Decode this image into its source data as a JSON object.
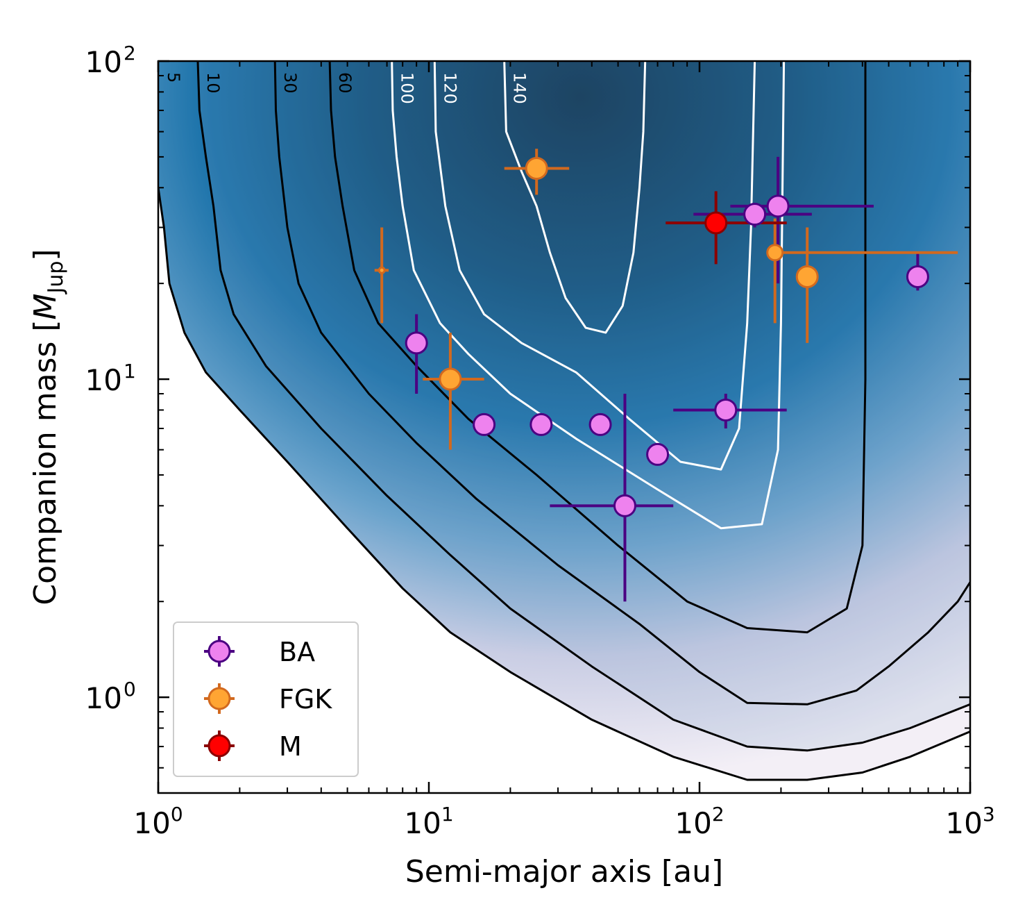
{
  "chart_data": {
    "type": "scatter",
    "title": "",
    "xlabel": "Semi-major axis [au]",
    "ylabel": "Companion mass [M_Jup]",
    "ylabel_main": "Companion mass [",
    "ylabel_italic": "M",
    "ylabel_sub": "Jup",
    "ylabel_end": "]",
    "x_scale": "log",
    "y_scale": "log",
    "xlim": [
      1,
      1000
    ],
    "ylim": [
      0.5,
      100
    ],
    "x_ticks": [
      {
        "value": 1,
        "base": "10",
        "exp": "0"
      },
      {
        "value": 10,
        "base": "10",
        "exp": "1"
      },
      {
        "value": 100,
        "base": "10",
        "exp": "2"
      },
      {
        "value": 1000,
        "base": "10",
        "exp": "3"
      }
    ],
    "y_ticks": [
      {
        "value": 1,
        "base": "10",
        "exp": "0"
      },
      {
        "value": 10,
        "base": "10",
        "exp": "1"
      },
      {
        "value": 100,
        "base": "10",
        "exp": "2"
      }
    ],
    "grid": false,
    "legend_position": "bottom-left",
    "background": "sensitivity map (number of detectable stars), shaded white to dark blue",
    "contours": [
      {
        "label": "5",
        "color": "#000000",
        "points": [
          [
            1.0,
            40
          ],
          [
            1.05,
            30
          ],
          [
            1.1,
            20
          ],
          [
            1.25,
            14
          ],
          [
            1.5,
            10.5
          ],
          [
            2.0,
            8
          ],
          [
            3.0,
            5.5
          ],
          [
            5.0,
            3.4
          ],
          [
            8,
            2.2
          ],
          [
            12,
            1.6
          ],
          [
            20,
            1.2
          ],
          [
            40,
            0.85
          ],
          [
            80,
            0.65
          ],
          [
            150,
            0.55
          ],
          [
            250,
            0.55
          ],
          [
            400,
            0.58
          ],
          [
            600,
            0.65
          ],
          [
            1000,
            0.78
          ]
        ]
      },
      {
        "label": "10",
        "color": "#000000",
        "points": [
          [
            1.4,
            100
          ],
          [
            1.42,
            70
          ],
          [
            1.5,
            50
          ],
          [
            1.6,
            35
          ],
          [
            1.7,
            22
          ],
          [
            1.9,
            16
          ],
          [
            2.5,
            11
          ],
          [
            4,
            7
          ],
          [
            7,
            4.3
          ],
          [
            12,
            2.8
          ],
          [
            20,
            1.9
          ],
          [
            40,
            1.25
          ],
          [
            80,
            0.85
          ],
          [
            150,
            0.7
          ],
          [
            250,
            0.68
          ],
          [
            400,
            0.72
          ],
          [
            600,
            0.8
          ],
          [
            1000,
            0.95
          ]
        ]
      },
      {
        "label": "30",
        "color": "#000000",
        "points": [
          [
            2.7,
            100
          ],
          [
            2.72,
            70
          ],
          [
            2.8,
            50
          ],
          [
            3.0,
            30
          ],
          [
            3.3,
            20
          ],
          [
            4,
            14
          ],
          [
            6,
            9
          ],
          [
            9,
            6.3
          ],
          [
            15,
            4.2
          ],
          [
            30,
            2.6
          ],
          [
            60,
            1.7
          ],
          [
            100,
            1.2
          ],
          [
            150,
            0.96
          ],
          [
            250,
            0.95
          ],
          [
            380,
            1.05
          ],
          [
            500,
            1.25
          ],
          [
            700,
            1.6
          ],
          [
            900,
            2
          ],
          [
            1000,
            2.3
          ]
        ]
      },
      {
        "label": "60",
        "color": "#000000",
        "points": [
          [
            4.3,
            100
          ],
          [
            4.35,
            70
          ],
          [
            4.5,
            50
          ],
          [
            4.8,
            35
          ],
          [
            5.3,
            22
          ],
          [
            6.5,
            15
          ],
          [
            9,
            11
          ],
          [
            14,
            7.5
          ],
          [
            25,
            5
          ],
          [
            50,
            3
          ],
          [
            90,
            2
          ],
          [
            150,
            1.65
          ],
          [
            250,
            1.6
          ],
          [
            350,
            1.9
          ],
          [
            400,
            3
          ],
          [
            410,
            10
          ],
          [
            410,
            100
          ]
        ]
      },
      {
        "label": "100",
        "color": "#ffffff",
        "points": [
          [
            7.3,
            100
          ],
          [
            7.35,
            70
          ],
          [
            7.6,
            50
          ],
          [
            8.0,
            35
          ],
          [
            8.8,
            22
          ],
          [
            11,
            15
          ],
          [
            14,
            12
          ],
          [
            20,
            9
          ],
          [
            35,
            6.5
          ],
          [
            70,
            4.5
          ],
          [
            120,
            3.4
          ],
          [
            170,
            3.5
          ],
          [
            195,
            6
          ],
          [
            200,
            15
          ],
          [
            205,
            100
          ]
        ]
      },
      {
        "label": "120",
        "color": "#ffffff",
        "points": [
          [
            10.5,
            100
          ],
          [
            10.6,
            60
          ],
          [
            11.5,
            35
          ],
          [
            13,
            22
          ],
          [
            16,
            16
          ],
          [
            22,
            13
          ],
          [
            35,
            10.5
          ],
          [
            55,
            7.5
          ],
          [
            85,
            5.5
          ],
          [
            120,
            5.2
          ],
          [
            140,
            7
          ],
          [
            150,
            15
          ],
          [
            155,
            30
          ],
          [
            160,
            100
          ]
        ]
      },
      {
        "label": "140",
        "color": "#ffffff",
        "points": [
          [
            19,
            100
          ],
          [
            19.3,
            60
          ],
          [
            22,
            45
          ],
          [
            25,
            35
          ],
          [
            28,
            25
          ],
          [
            32,
            18
          ],
          [
            38,
            14.5
          ],
          [
            45,
            14
          ],
          [
            52,
            17
          ],
          [
            57,
            25
          ],
          [
            60,
            40
          ],
          [
            62,
            60
          ],
          [
            63,
            100
          ]
        ]
      }
    ],
    "series": [
      {
        "name": "BA",
        "fill": "#ee82ee",
        "edge": "#4b0082",
        "points": [
          {
            "x": 9,
            "y": 13,
            "xerr": [
              0,
              0
            ],
            "yerr": [
              9,
              16
            ]
          },
          {
            "x": 16,
            "y": 7.2,
            "xerr": [
              15.5,
              16.5
            ],
            "yerr": [
              6.7,
              7.7
            ]
          },
          {
            "x": 26,
            "y": 7.2,
            "xerr": [
              25,
              27
            ],
            "yerr": [
              6.8,
              7.6
            ]
          },
          {
            "x": 43,
            "y": 7.2,
            "xerr": [
              42,
              44
            ],
            "yerr": [
              6.8,
              7.6
            ]
          },
          {
            "x": 70,
            "y": 5.8,
            "xerr": [
              68,
              72
            ],
            "yerr": [
              5.5,
              6.1
            ]
          },
          {
            "x": 53,
            "y": 4.0,
            "xerr": [
              28,
              80
            ],
            "yerr": [
              2.0,
              9.0
            ]
          },
          {
            "x": 125,
            "y": 8.0,
            "xerr": [
              80,
              210
            ],
            "yerr": [
              7.0,
              9.0
            ]
          },
          {
            "x": 160,
            "y": 33,
            "xerr": [
              95,
              260
            ],
            "yerr": [
              30,
              35
            ]
          },
          {
            "x": 195,
            "y": 35,
            "xerr": [
              130,
              440
            ],
            "yerr": [
              20,
              50
            ]
          },
          {
            "x": 640,
            "y": 21,
            "xerr": [
              630,
              650
            ],
            "yerr": [
              19,
              25
            ]
          }
        ]
      },
      {
        "name": "FGK",
        "fill": "#ffa533",
        "edge": "#d2691e",
        "points": [
          {
            "x": 6.7,
            "y": 22,
            "xerr": [
              6.3,
              7.1
            ],
            "yerr": [
              15,
              30
            ],
            "small": true
          },
          {
            "x": 12,
            "y": 10,
            "xerr": [
              9.5,
              16
            ],
            "yerr": [
              6.0,
              14
            ]
          },
          {
            "x": 25,
            "y": 46,
            "xerr": [
              19,
              33
            ],
            "yerr": [
              38,
              53
            ]
          },
          {
            "x": 190,
            "y": 25,
            "xerr": [
              185,
              900
            ],
            "yerr": [
              15,
              32
            ],
            "small_marker": true
          },
          {
            "x": 250,
            "y": 21,
            "xerr": [
              240,
              260
            ],
            "yerr": [
              13,
              30
            ]
          }
        ]
      },
      {
        "name": "M",
        "fill": "#ff0000",
        "edge": "#8b0000",
        "points": [
          {
            "x": 115,
            "y": 31,
            "xerr": [
              75,
              210
            ],
            "yerr": [
              23,
              39
            ]
          }
        ]
      }
    ],
    "legend": [
      {
        "label": "BA",
        "fill": "#ee82ee",
        "edge": "#4b0082"
      },
      {
        "label": "FGK",
        "fill": "#ffa533",
        "edge": "#d2691e"
      },
      {
        "label": "M",
        "fill": "#ff0000",
        "edge": "#8b0000"
      }
    ]
  }
}
